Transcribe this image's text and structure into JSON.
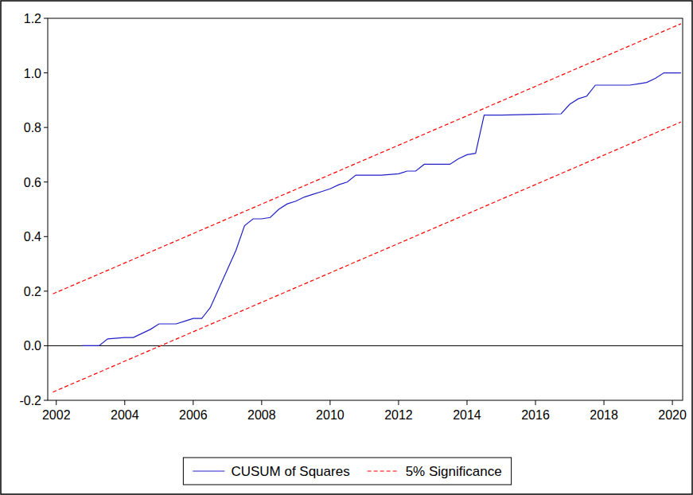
{
  "chart_data": {
    "type": "line",
    "xlim": [
      2001.75,
      2020.3
    ],
    "xticks": [
      2002,
      2004,
      2006,
      2008,
      2010,
      2012,
      2014,
      2016,
      2018,
      2020
    ],
    "ylim": [
      -0.2,
      1.2
    ],
    "yticks": [
      -0.2,
      {
        "value": 0.0,
        "label": "0.0"
      },
      0.2,
      0.4,
      0.6,
      0.8,
      {
        "value": 1.0,
        "label": "1.0"
      },
      1.2
    ],
    "reference_line": 0,
    "grid": false,
    "legend": "bottom",
    "series": [
      {
        "name": "CUSUM of Squares",
        "color": "#2020c8",
        "line_style": "solid",
        "x": [
          2002.75,
          2003.25,
          2003.5,
          2004.0,
          2004.25,
          2004.75,
          2005.0,
          2005.5,
          2005.75,
          2006.0,
          2006.25,
          2006.5,
          2006.75,
          2007.0,
          2007.25,
          2007.5,
          2007.75,
          2008.0,
          2008.25,
          2008.5,
          2008.75,
          2009.0,
          2009.25,
          2009.5,
          2009.75,
          2010.0,
          2010.25,
          2010.5,
          2010.75,
          2011.0,
          2011.5,
          2012.0,
          2012.25,
          2012.5,
          2012.75,
          2013.0,
          2013.5,
          2013.75,
          2014.0,
          2014.25,
          2014.5,
          2015.0,
          2016.0,
          2016.75,
          2017.0,
          2017.25,
          2017.5,
          2017.75,
          2018.0,
          2018.75,
          2019.0,
          2019.25,
          2019.5,
          2019.75,
          2020.0,
          2020.25
        ],
        "values": [
          0.0,
          0.0,
          0.025,
          0.03,
          0.03,
          0.06,
          0.08,
          0.08,
          0.09,
          0.1,
          0.1,
          0.14,
          0.21,
          0.28,
          0.35,
          0.44,
          0.465,
          0.465,
          0.47,
          0.5,
          0.52,
          0.53,
          0.545,
          0.555,
          0.565,
          0.575,
          0.59,
          0.6,
          0.625,
          0.625,
          0.625,
          0.63,
          0.64,
          0.64,
          0.665,
          0.665,
          0.665,
          0.685,
          0.7,
          0.705,
          0.845,
          0.845,
          0.848,
          0.85,
          0.885,
          0.905,
          0.915,
          0.955,
          0.955,
          0.955,
          0.96,
          0.965,
          0.98,
          1.0,
          1.0,
          1.0
        ]
      },
      {
        "name": "5% Significance",
        "color": "#ff0000",
        "line_style": "dashed",
        "x": [
          2001.9,
          2020.25
        ],
        "values": [
          0.19,
          1.18
        ]
      },
      {
        "name": "5% Significance",
        "color": "#ff0000",
        "line_style": "dashed",
        "x": [
          2001.9,
          2020.25
        ],
        "values": [
          -0.17,
          0.82
        ]
      }
    ]
  }
}
